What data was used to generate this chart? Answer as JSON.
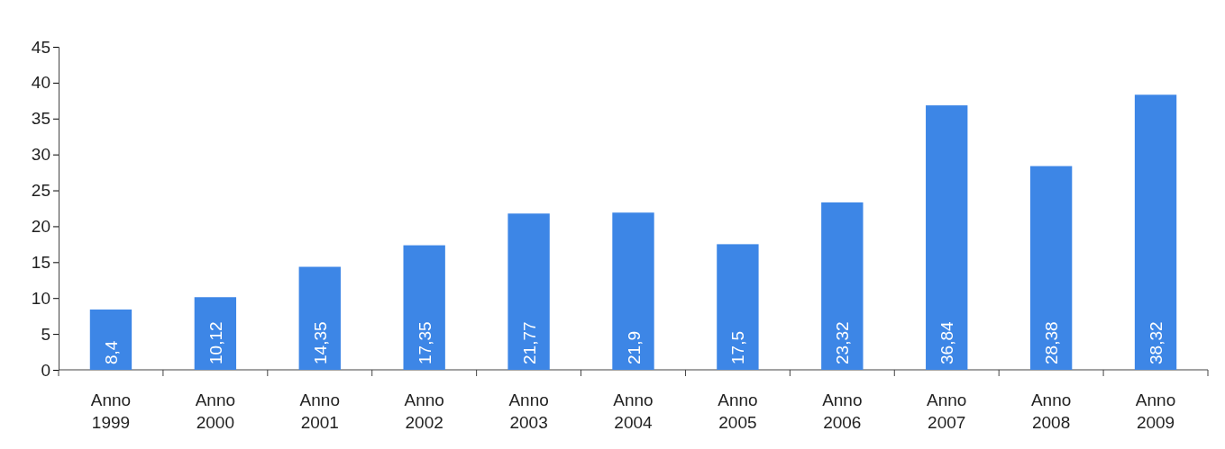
{
  "chart_data": {
    "type": "bar",
    "categories": [
      "Anno 1999",
      "Anno 2000",
      "Anno 2001",
      "Anno 2002",
      "Anno 2003",
      "Anno 2004",
      "Anno 2005",
      "Anno 2006",
      "Anno 2007",
      "Anno 2008",
      "Anno 2009"
    ],
    "values": [
      8.4,
      10.12,
      14.35,
      17.35,
      21.77,
      21.9,
      17.5,
      23.32,
      36.84,
      28.38,
      38.32
    ],
    "value_labels": [
      "8,4",
      "10,12",
      "14,35",
      "17,35",
      "21,77",
      "21,9",
      "17,5",
      "23,32",
      "36,84",
      "28,38",
      "38,32"
    ],
    "color": "#3d86e6",
    "ylim": [
      0,
      45
    ],
    "yticks": [
      0,
      5,
      10,
      15,
      20,
      25,
      30,
      35,
      40,
      45
    ],
    "grid": false
  }
}
